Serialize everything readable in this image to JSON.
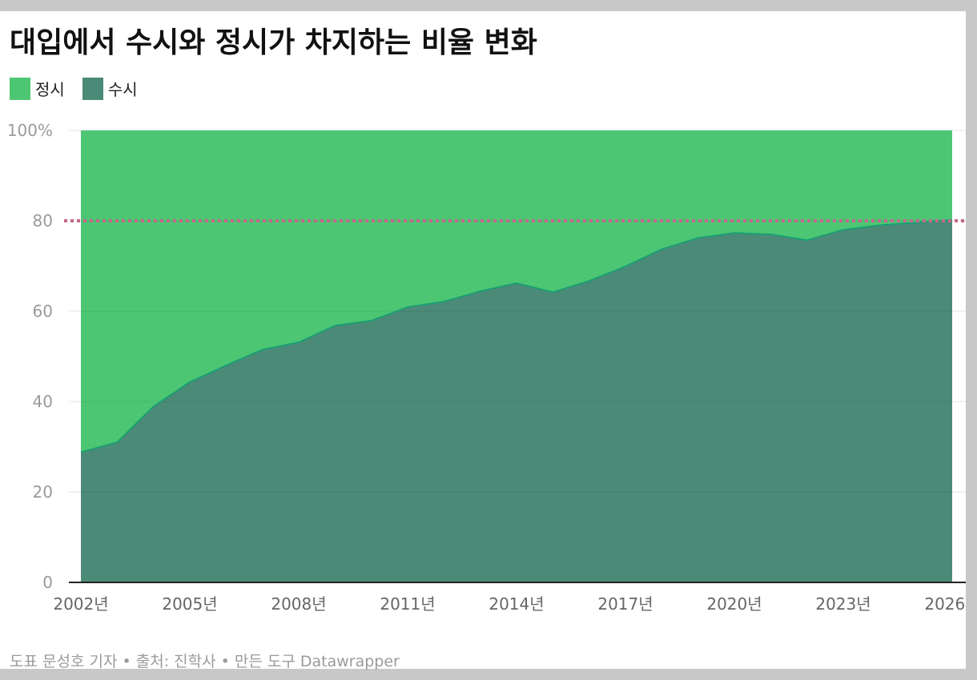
{
  "title": "대입에서 수시와 정시가 차지하는 비율 변화",
  "footer": "도표 문성호 기자 • 출처: 진학사 • 만든 도구 Datawrapper",
  "chart_data": {
    "type": "area",
    "stacked": true,
    "percent": true,
    "ylim": [
      0,
      100
    ],
    "y_ticks": [
      {
        "value": 0,
        "label": "0"
      },
      {
        "value": 20,
        "label": "20"
      },
      {
        "value": 40,
        "label": "40"
      },
      {
        "value": 60,
        "label": "60"
      },
      {
        "value": 80,
        "label": "80"
      },
      {
        "value": 100,
        "label": "100%"
      }
    ],
    "x_ticks": [
      {
        "value": 2002,
        "label": "2002년"
      },
      {
        "value": 2005,
        "label": "2005년"
      },
      {
        "value": 2008,
        "label": "2008년"
      },
      {
        "value": 2011,
        "label": "2011년"
      },
      {
        "value": 2014,
        "label": "2014년"
      },
      {
        "value": 2017,
        "label": "2017년"
      },
      {
        "value": 2020,
        "label": "2020년"
      },
      {
        "value": 2023,
        "label": "2023년"
      },
      {
        "value": 2026,
        "label": "2026년"
      }
    ],
    "x": [
      2002,
      2003,
      2004,
      2005,
      2006,
      2007,
      2008,
      2009,
      2010,
      2011,
      2012,
      2013,
      2014,
      2015,
      2016,
      2017,
      2018,
      2019,
      2020,
      2021,
      2022,
      2023,
      2024,
      2025,
      2026
    ],
    "series": [
      {
        "name": "수시",
        "color": "#4c8a78",
        "line_color": "#1a9e72",
        "values": [
          28.8,
          31.0,
          38.9,
          44.3,
          48.0,
          51.5,
          53.1,
          56.8,
          57.9,
          60.9,
          62.1,
          64.4,
          66.2,
          64.2,
          66.7,
          69.9,
          73.7,
          76.2,
          77.3,
          77.0,
          75.7,
          78.0,
          79.0,
          79.6,
          80.2
        ]
      },
      {
        "name": "정시",
        "color": "#4dc674",
        "values": [
          71.2,
          69.0,
          61.1,
          55.7,
          52.0,
          48.5,
          46.9,
          43.2,
          42.1,
          39.1,
          37.9,
          35.6,
          33.8,
          35.8,
          33.3,
          30.1,
          26.3,
          23.8,
          22.7,
          23.0,
          24.3,
          22.0,
          21.0,
          20.4,
          19.8
        ]
      }
    ],
    "reference_line": {
      "value": 80,
      "style": "dotted",
      "color": "#c5688c"
    },
    "grid": true,
    "legend": "top-left"
  }
}
